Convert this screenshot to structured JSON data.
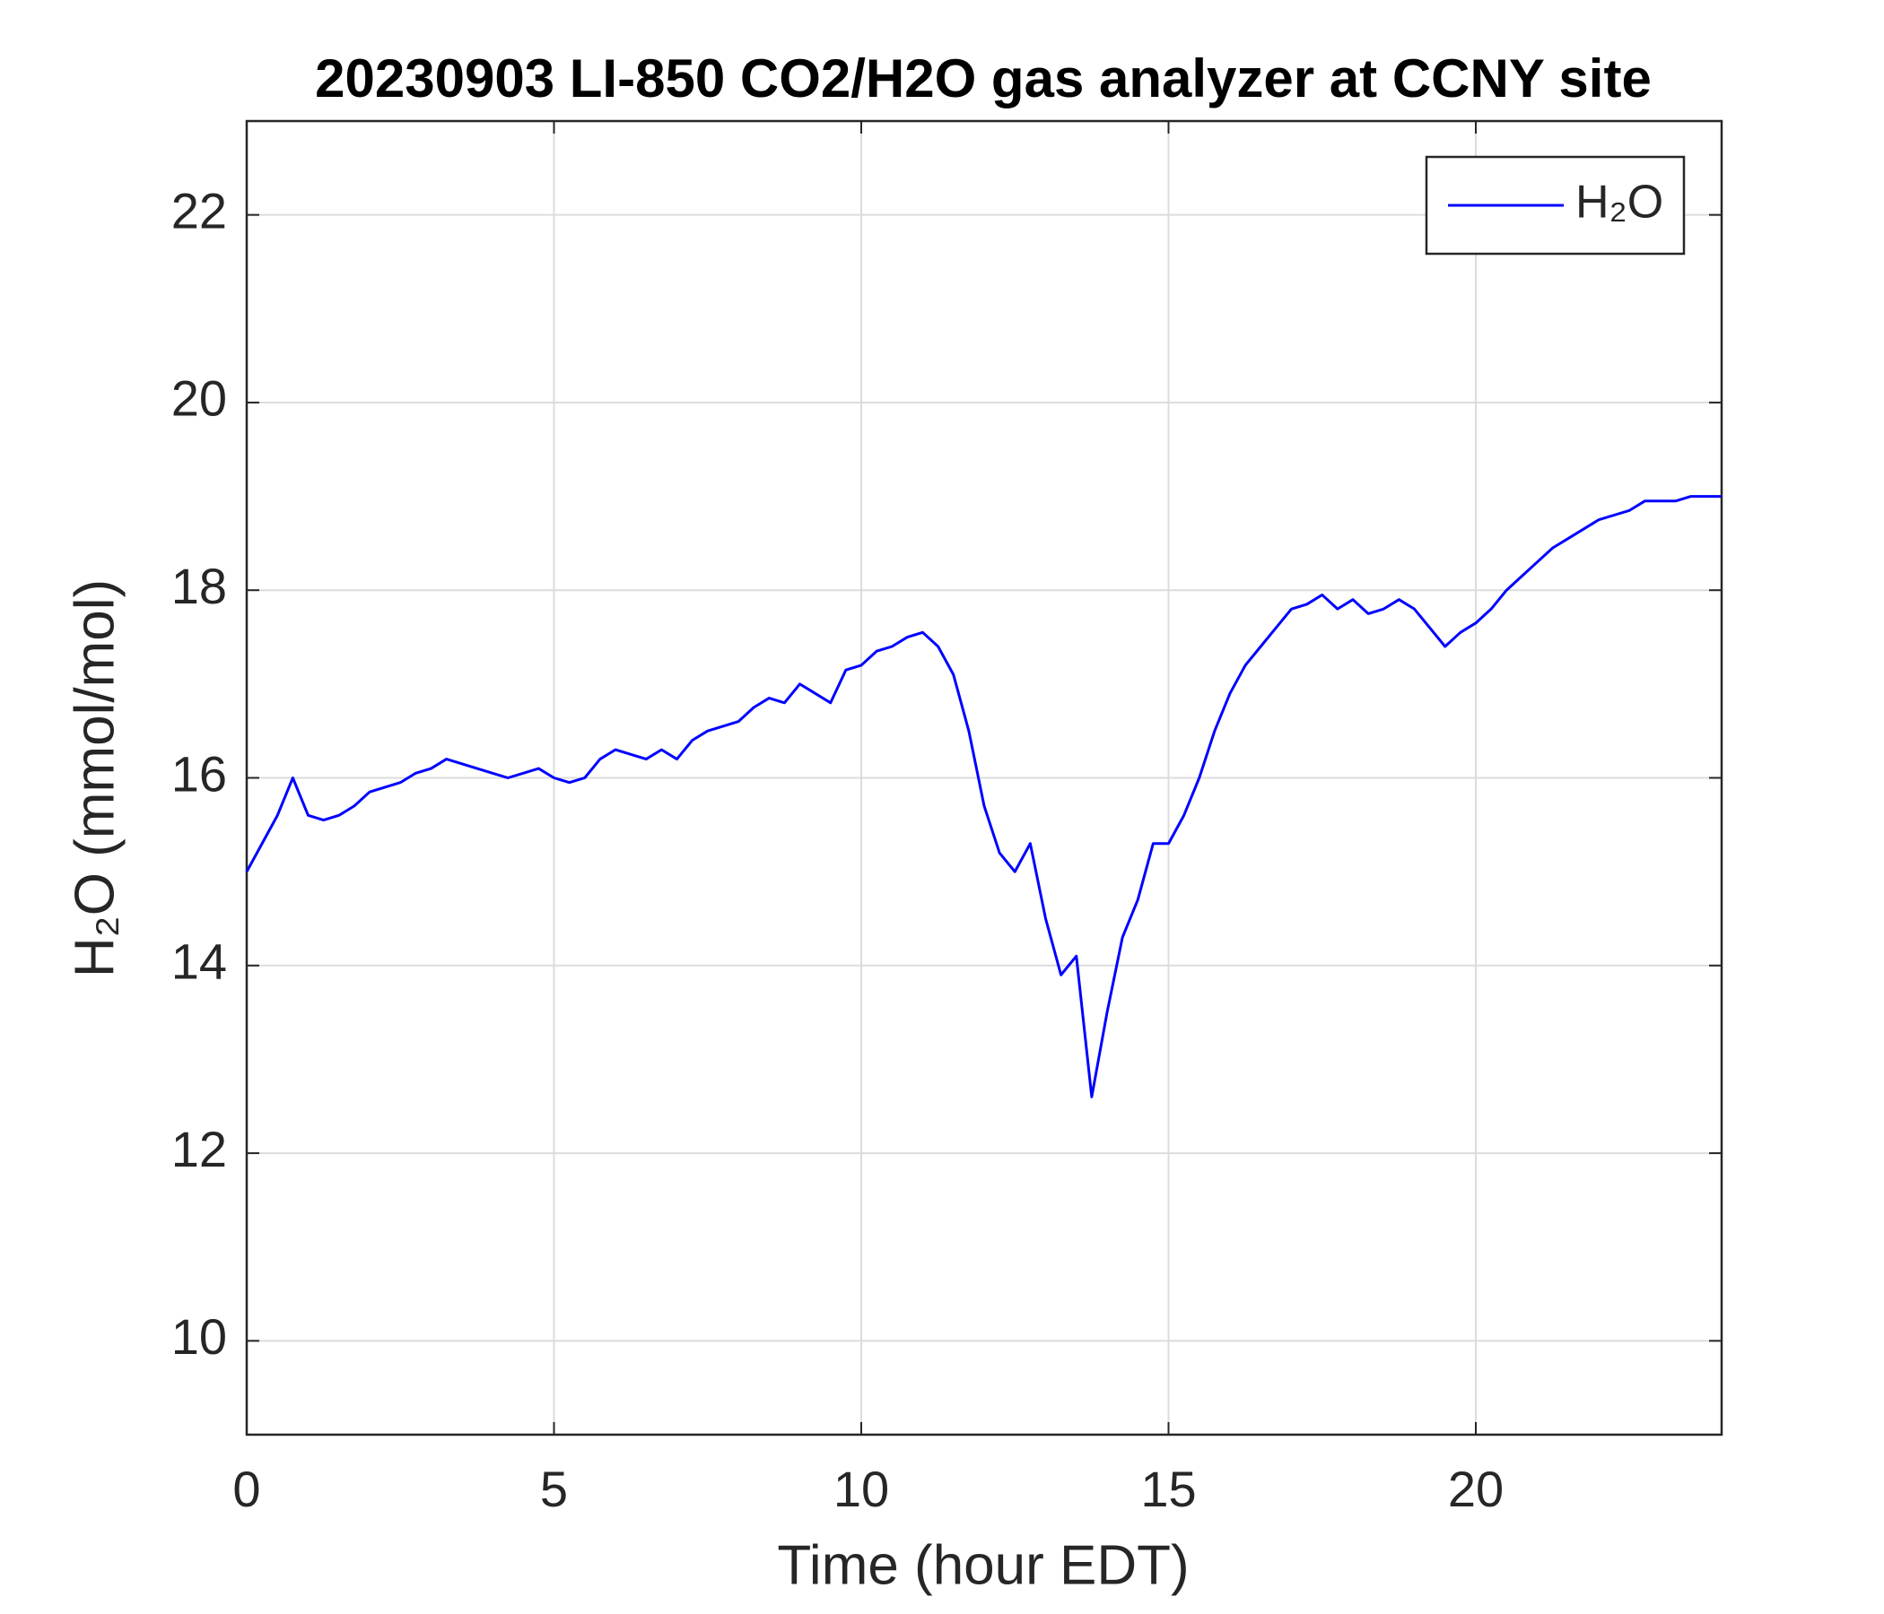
{
  "chart_data": {
    "type": "line",
    "title": "20230903 LI-850 CO2/H2O gas analyzer at CCNY site",
    "xlabel": "Time (hour EDT)",
    "ylabel": "H₂O (mmol/mol)",
    "x": [
      0,
      0.25,
      0.5,
      0.75,
      1,
      1.25,
      1.5,
      1.75,
      2,
      2.25,
      2.5,
      2.75,
      3,
      3.25,
      3.5,
      3.75,
      4,
      4.25,
      4.5,
      4.75,
      5,
      5.25,
      5.5,
      5.75,
      6,
      6.25,
      6.5,
      6.75,
      7,
      7.25,
      7.5,
      7.75,
      8,
      8.25,
      8.5,
      8.75,
      9,
      9.25,
      9.5,
      9.75,
      10,
      10.25,
      10.5,
      10.75,
      11,
      11.25,
      11.5,
      11.75,
      12,
      12.25,
      12.5,
      12.75,
      13,
      13.25,
      13.5,
      13.75,
      14,
      14.25,
      14.5,
      14.75,
      15,
      15.25,
      15.5,
      15.75,
      16,
      16.25,
      16.5,
      16.75,
      17,
      17.25,
      17.5,
      17.75,
      18,
      18.25,
      18.5,
      18.75,
      19,
      19.25,
      19.5,
      19.75,
      20,
      20.25,
      20.5,
      20.75,
      21,
      21.25,
      21.5,
      21.75,
      22,
      22.25,
      22.5,
      22.75,
      23,
      23.25,
      23.5,
      23.75,
      24
    ],
    "series": [
      {
        "name": "H₂O",
        "color": "#0000ff",
        "values": [
          15.0,
          15.3,
          15.6,
          16.0,
          15.6,
          15.55,
          15.6,
          15.7,
          15.85,
          15.9,
          15.95,
          16.05,
          16.1,
          16.2,
          16.15,
          16.1,
          16.05,
          16.0,
          16.05,
          16.1,
          16.0,
          15.95,
          16.0,
          16.2,
          16.3,
          16.25,
          16.2,
          16.3,
          16.2,
          16.4,
          16.5,
          16.55,
          16.6,
          16.75,
          16.85,
          16.8,
          17.0,
          16.9,
          16.8,
          17.15,
          17.2,
          17.35,
          17.4,
          17.5,
          17.55,
          17.4,
          17.1,
          16.5,
          15.7,
          15.2,
          15.0,
          15.3,
          14.5,
          13.9,
          14.1,
          12.6,
          13.5,
          14.3,
          14.7,
          15.3,
          15.3,
          15.6,
          16.0,
          16.5,
          16.9,
          17.2,
          17.4,
          17.6,
          17.8,
          17.85,
          17.95,
          17.8,
          17.9,
          17.75,
          17.8,
          17.9,
          17.8,
          17.6,
          17.4,
          17.55,
          17.65,
          17.8,
          18.0,
          18.15,
          18.3,
          18.45,
          18.55,
          18.65,
          18.75,
          18.8,
          18.85,
          18.95,
          18.95,
          18.95,
          19.0,
          19.0,
          19.0
        ]
      }
    ],
    "xlim": [
      0,
      24
    ],
    "xticks": [
      0,
      5,
      10,
      15,
      20
    ],
    "ylim": [
      9,
      23
    ],
    "yticks": [
      10,
      12,
      14,
      16,
      18,
      20,
      22
    ],
    "grid": true,
    "legend": "upper right"
  }
}
